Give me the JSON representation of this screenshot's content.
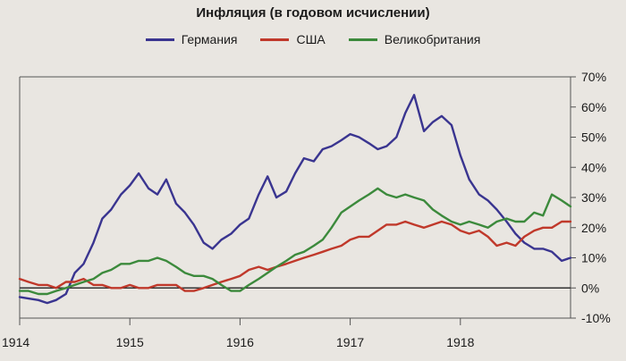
{
  "chart_data": {
    "type": "line",
    "title": "Инфляция (в годовом исчислении)",
    "xlabel": "",
    "ylabel": "",
    "x_tick_labels": [
      "1914",
      "1915",
      "1916",
      "1917",
      "1918"
    ],
    "x_tick_values": [
      1914.0,
      1915.0,
      1916.0,
      1917.0,
      1918.0
    ],
    "xlim": [
      1914.0,
      1919.0
    ],
    "ylim": [
      -10,
      70
    ],
    "y_tick_values": [
      -10,
      0,
      10,
      20,
      30,
      40,
      50,
      60,
      70
    ],
    "y_tick_labels": [
      "-10%",
      "0%",
      "10%",
      "20%",
      "30%",
      "40%",
      "50%",
      "60%",
      "70%"
    ],
    "grid": false,
    "legend_position": "top",
    "series": [
      {
        "name": "Германия",
        "color": "#3a3590",
        "x": [
          1914.0,
          1914.08,
          1914.17,
          1914.25,
          1914.33,
          1914.42,
          1914.5,
          1914.58,
          1914.67,
          1914.75,
          1914.83,
          1914.92,
          1915.0,
          1915.08,
          1915.17,
          1915.25,
          1915.33,
          1915.42,
          1915.5,
          1915.58,
          1915.67,
          1915.75,
          1915.83,
          1915.92,
          1916.0,
          1916.08,
          1916.17,
          1916.25,
          1916.33,
          1916.42,
          1916.5,
          1916.58,
          1916.67,
          1916.75,
          1916.83,
          1916.92,
          1917.0,
          1917.08,
          1917.17,
          1917.25,
          1917.33,
          1917.42,
          1917.5,
          1917.58,
          1917.67,
          1917.75,
          1917.83,
          1917.92,
          1918.0,
          1918.08,
          1918.17,
          1918.25,
          1918.33,
          1918.42,
          1918.5,
          1918.58,
          1918.67,
          1918.75,
          1918.83,
          1918.92,
          1919.0
        ],
        "values": [
          -3,
          -3.5,
          -4,
          -5,
          -4,
          -2,
          5,
          8,
          15,
          23,
          26,
          31,
          34,
          38,
          33,
          31,
          36,
          28,
          25,
          21,
          15,
          13,
          16,
          18,
          21,
          23,
          31,
          37,
          30,
          32,
          38,
          43,
          42,
          46,
          47,
          49,
          51,
          50,
          48,
          46,
          47,
          50,
          58,
          64,
          52,
          55,
          57,
          54,
          44,
          36,
          31,
          29,
          26,
          22,
          18,
          15,
          13,
          13,
          12,
          9,
          10
        ]
      },
      {
        "name": "США",
        "color": "#c0392b",
        "x": [
          1914.0,
          1914.08,
          1914.17,
          1914.25,
          1914.33,
          1914.42,
          1914.5,
          1914.58,
          1914.67,
          1914.75,
          1914.83,
          1914.92,
          1915.0,
          1915.08,
          1915.17,
          1915.25,
          1915.33,
          1915.42,
          1915.5,
          1915.58,
          1915.67,
          1915.75,
          1915.83,
          1915.92,
          1916.0,
          1916.08,
          1916.17,
          1916.25,
          1916.33,
          1916.42,
          1916.5,
          1916.58,
          1916.67,
          1916.75,
          1916.83,
          1916.92,
          1917.0,
          1917.08,
          1917.17,
          1917.25,
          1917.33,
          1917.42,
          1917.5,
          1917.58,
          1917.67,
          1917.75,
          1917.83,
          1917.92,
          1918.0,
          1918.08,
          1918.17,
          1918.25,
          1918.33,
          1918.42,
          1918.5,
          1918.58,
          1918.67,
          1918.75,
          1918.83,
          1918.92,
          1919.0
        ],
        "values": [
          3,
          2,
          1,
          1,
          0,
          2,
          2,
          3,
          1,
          1,
          0,
          0,
          1,
          0,
          0,
          1,
          1,
          1,
          -1,
          -1,
          0,
          1,
          2,
          3,
          4,
          6,
          7,
          6,
          7,
          8,
          9,
          10,
          11,
          12,
          13,
          14,
          16,
          17,
          17,
          19,
          21,
          21,
          22,
          21,
          20,
          21,
          22,
          21,
          19,
          18,
          19,
          17,
          14,
          15,
          14,
          17,
          19,
          20,
          20,
          22,
          22
        ]
      },
      {
        "name": "Великобритания",
        "color": "#3c8a3c",
        "x": [
          1914.0,
          1914.08,
          1914.17,
          1914.25,
          1914.33,
          1914.42,
          1914.5,
          1914.58,
          1914.67,
          1914.75,
          1914.83,
          1914.92,
          1915.0,
          1915.08,
          1915.17,
          1915.25,
          1915.33,
          1915.42,
          1915.5,
          1915.58,
          1915.67,
          1915.75,
          1915.83,
          1915.92,
          1916.0,
          1916.08,
          1916.17,
          1916.25,
          1916.33,
          1916.42,
          1916.5,
          1916.58,
          1916.67,
          1916.75,
          1916.83,
          1916.92,
          1917.0,
          1917.08,
          1917.17,
          1917.25,
          1917.33,
          1917.42,
          1917.5,
          1917.58,
          1917.67,
          1917.75,
          1917.83,
          1917.92,
          1918.0,
          1918.08,
          1918.17,
          1918.25,
          1918.33,
          1918.42,
          1918.5,
          1918.58,
          1918.67,
          1918.75,
          1918.83,
          1918.92,
          1919.0
        ],
        "values": [
          -1,
          -1,
          -2,
          -2,
          -1,
          0,
          1,
          2,
          3,
          5,
          6,
          8,
          8,
          9,
          9,
          10,
          9,
          7,
          5,
          4,
          4,
          3,
          1,
          -1,
          -1,
          1,
          3,
          5,
          7,
          9,
          11,
          12,
          14,
          16,
          20,
          25,
          27,
          29,
          31,
          33,
          31,
          30,
          31,
          30,
          29,
          26,
          24,
          22,
          21,
          22,
          21,
          20,
          22,
          23,
          22,
          22,
          25,
          24,
          31,
          29,
          27
        ]
      }
    ]
  }
}
